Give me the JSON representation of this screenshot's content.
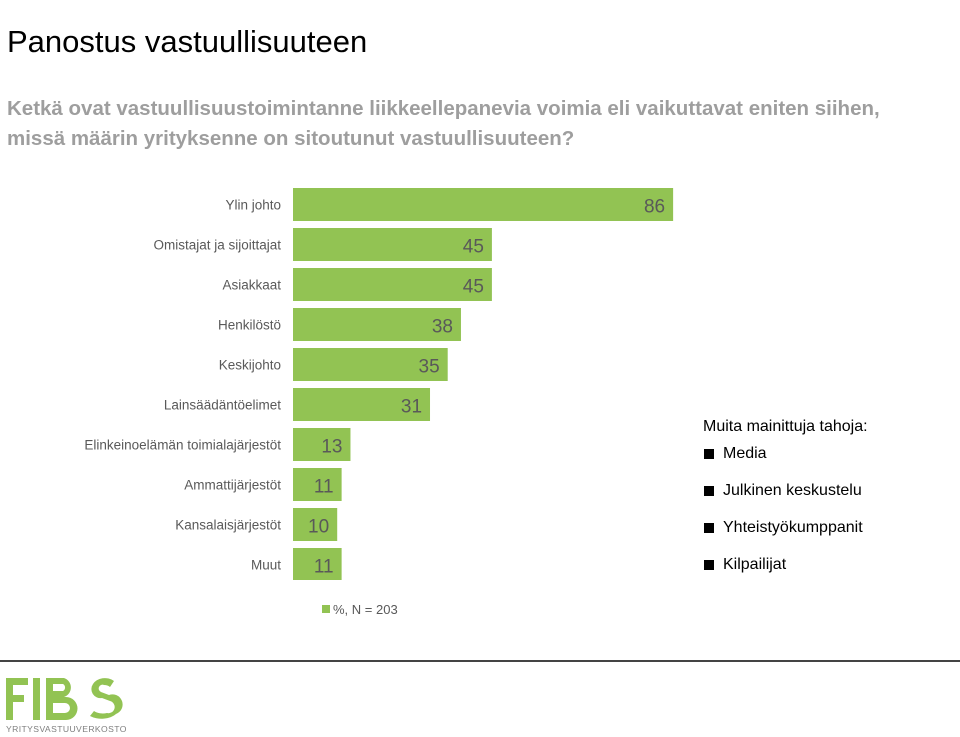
{
  "header": {
    "title": "Panostus vastuullisuuteen",
    "subtitle": "Ketkä ovat vastuullisuustoimintanne liikkeellepanevia voimia eli vaikuttavat eniten siihen, missä määrin yrityksenne on sitoutunut vastuullisuuteen?"
  },
  "chart_data": {
    "type": "bar",
    "orientation": "horizontal",
    "categories": [
      "Ylin johto",
      "Omistajat ja sijoittajat",
      "Asiakkaat",
      "Henkilöstö",
      "Keskijohto",
      "Lainsäädäntöelimet",
      "Elinkeinoelämän toimialajärjestöt",
      "Ammattijärjestöt",
      "Kansalaisjärjestöt",
      "Muut"
    ],
    "values": [
      86,
      45,
      45,
      38,
      35,
      31,
      13,
      11,
      10,
      11
    ],
    "series_name": "%, N = 203",
    "xlim": [
      0,
      100
    ],
    "color": "#92c353",
    "value_label_color": "#595959",
    "grid": false,
    "legend": "bottom"
  },
  "others": {
    "heading": "Muita mainittuja tahoja:",
    "items": [
      "Media",
      "Julkinen keskustelu",
      "Yhteistyökumppanit",
      "Kilpailijat"
    ]
  },
  "logo": {
    "text": "FIBS",
    "tagline": "YRITYSVASTUUVERKOSTO",
    "color": "#92c353"
  }
}
